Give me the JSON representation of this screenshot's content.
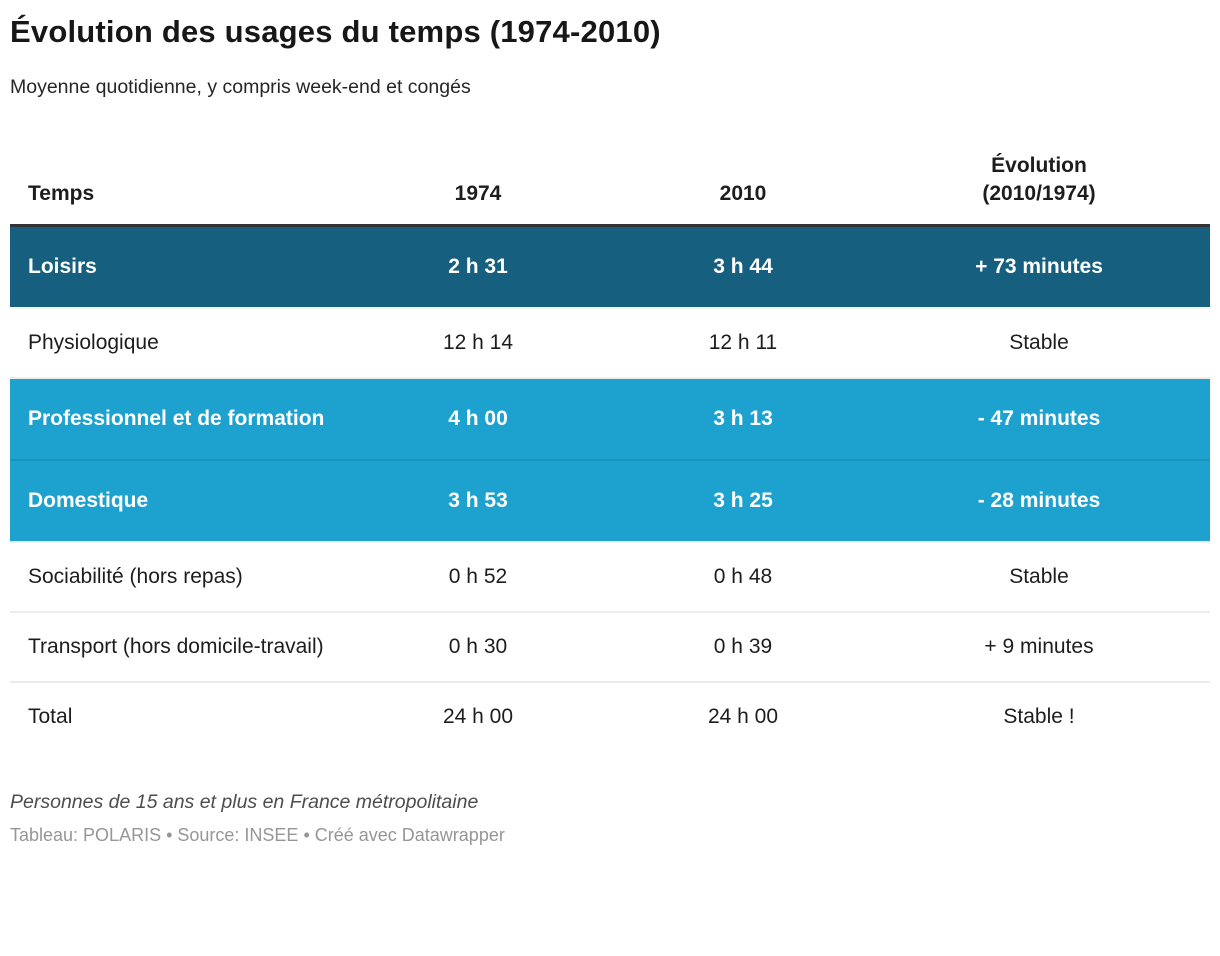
{
  "header": {
    "title": "Évolution des usages du temps (1974-2010)",
    "subtitle": "Moyenne quotidienne, y compris week-end et congés"
  },
  "chart_data": {
    "type": "table",
    "title": "Évolution des usages du temps (1974-2010)",
    "subtitle": "Moyenne quotidienne, y compris week-end et congés",
    "columns": [
      "Temps",
      "1974",
      "2010",
      "Évolution\n(2010/1974)"
    ],
    "rows": [
      {
        "cells": [
          "Loisirs",
          "2 h 31",
          "3 h 44",
          "+ 73 minutes"
        ],
        "highlight": "dark-teal"
      },
      {
        "cells": [
          "Physiologique",
          "12 h 14",
          "12 h 11",
          "Stable"
        ],
        "highlight": "none"
      },
      {
        "cells": [
          "Professionnel et de formation",
          "4 h 00",
          "3 h 13",
          "- 47 minutes"
        ],
        "highlight": "light-blue"
      },
      {
        "cells": [
          "Domestique",
          "3 h 53",
          "3 h 25",
          "- 28 minutes"
        ],
        "highlight": "light-blue"
      },
      {
        "cells": [
          "Sociabilité (hors repas)",
          "0 h 52",
          "0 h 48",
          "Stable"
        ],
        "highlight": "none"
      },
      {
        "cells": [
          "Transport (hors domicile-travail)",
          "0 h 30",
          "0 h 39",
          "+ 9 minutes"
        ],
        "highlight": "none"
      },
      {
        "cells": [
          "Total",
          "24 h 00",
          "24 h 00",
          "Stable !"
        ],
        "highlight": "none"
      }
    ],
    "layout_hints": {
      "first_column_align": "left",
      "other_columns_align": "center",
      "header_border_color": "#333333"
    },
    "colors": {
      "dark_row_bg": "#175f7e",
      "light_row_bg": "#1da2cf",
      "row_text_on_color": "#ffffff",
      "body_text": "#1d1d1d",
      "row_separator": "#ececec"
    }
  },
  "footer": {
    "note": "Personnes de 15 ans et plus en France métropolitaine",
    "credit": "Tableau: POLARIS • Source: INSEE • Créé avec Datawrapper"
  }
}
